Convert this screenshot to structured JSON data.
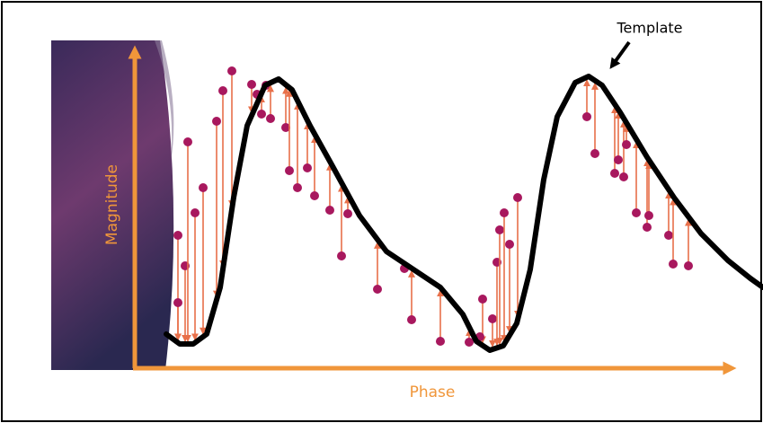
{
  "template_label": "Template",
  "y_axis_label": "Magnitude",
  "x_axis_label": "Phase"
}
